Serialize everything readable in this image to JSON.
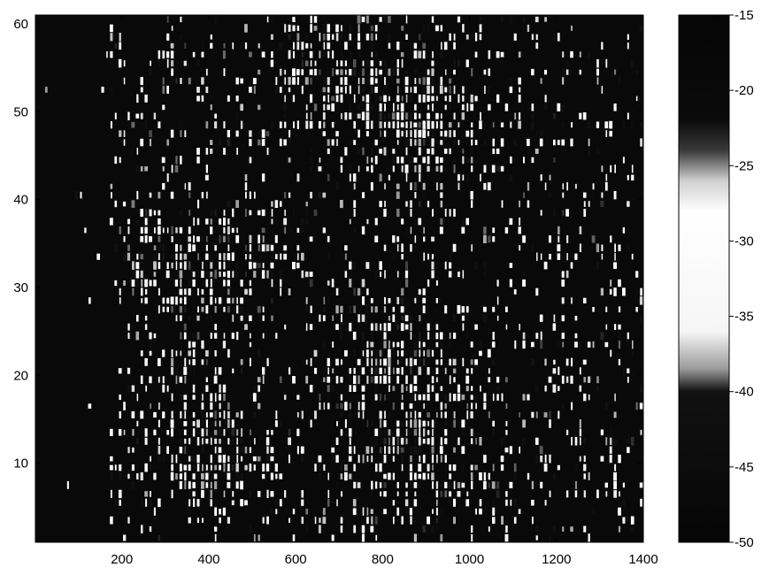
{
  "chart_data": {
    "type": "heatmap",
    "title": "",
    "xlabel": "",
    "ylabel": "",
    "x_range": [
      1,
      1400
    ],
    "y_range": [
      1,
      61
    ],
    "x_ticks": [
      200,
      400,
      600,
      800,
      1000,
      1200,
      1400
    ],
    "y_ticks": [
      10,
      20,
      30,
      40,
      50,
      60
    ],
    "grid": false,
    "colorbar": {
      "range": [
        -50,
        -15
      ],
      "ticks": [
        -15,
        -20,
        -25,
        -30,
        -35,
        -40,
        -45,
        -50
      ],
      "colormap": "grayscale",
      "stops": [
        {
          "value": -50,
          "color": "#060606"
        },
        {
          "value": -40,
          "color": "#111111"
        },
        {
          "value": -38.5,
          "color": "#9a9a9a"
        },
        {
          "value": -36,
          "color": "#f6f6f6"
        },
        {
          "value": -28,
          "color": "#ffffff"
        },
        {
          "value": -26,
          "color": "#cfcfcf"
        },
        {
          "value": -24,
          "color": "#3a3a3a"
        },
        {
          "value": -22,
          "color": "#0b0b0b"
        },
        {
          "value": -15,
          "color": "#050505"
        }
      ]
    },
    "structure": {
      "background_level": -47,
      "dark_left_band_x_max": 170,
      "bright_regions": [
        {
          "x": 700,
          "y": 55,
          "level": -30
        },
        {
          "x": 880,
          "y": 48,
          "level": -31
        },
        {
          "x": 390,
          "y": 33,
          "level": -31
        },
        {
          "x": 830,
          "y": 22,
          "level": -31
        },
        {
          "x": 400,
          "y": 12,
          "level": -32
        },
        {
          "x": 870,
          "y": 11,
          "level": -32
        }
      ]
    }
  }
}
